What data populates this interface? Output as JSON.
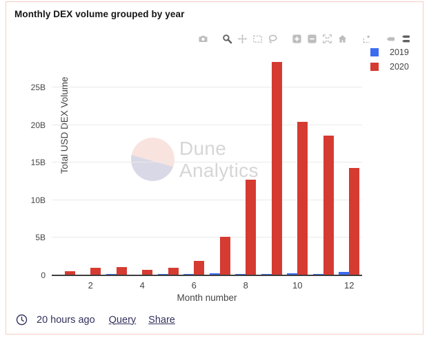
{
  "card": {
    "title": "Monthly DEX volume grouped by year"
  },
  "toolbar": {
    "icons": [
      {
        "name": "camera-download",
        "active": false
      },
      {
        "name": "zoom",
        "active": true
      },
      {
        "name": "pan",
        "active": false
      },
      {
        "name": "box-select",
        "active": false
      },
      {
        "name": "lasso-select",
        "active": false
      },
      {
        "name": "zoom-in",
        "active": false
      },
      {
        "name": "zoom-out",
        "active": false
      },
      {
        "name": "autoscale",
        "active": false
      },
      {
        "name": "reset-axes-home",
        "active": false
      },
      {
        "name": "toggle-spike-lines",
        "active": false
      },
      {
        "name": "hover-closest",
        "active": false
      },
      {
        "name": "hover-compare",
        "active": true
      }
    ]
  },
  "chart_data": {
    "type": "bar",
    "title": "Monthly DEX volume grouped by year",
    "xlabel": "Month number",
    "ylabel": "Total USD DEX Volume",
    "unit": "billions USD",
    "categories": [
      1,
      2,
      3,
      4,
      5,
      6,
      7,
      8,
      9,
      10,
      11,
      12
    ],
    "x_ticks": [
      2,
      4,
      6,
      8,
      10,
      12
    ],
    "y_ticks": [
      {
        "v": 0,
        "label": "0"
      },
      {
        "v": 5,
        "label": "5B"
      },
      {
        "v": 10,
        "label": "10B"
      },
      {
        "v": 15,
        "label": "15B"
      },
      {
        "v": 20,
        "label": "20B"
      },
      {
        "v": 25,
        "label": "25B"
      }
    ],
    "ylim": [
      0,
      28.4
    ],
    "grid": "horizontal",
    "legend_position": "top-right",
    "series": [
      {
        "name": "2019",
        "color": "#3a6cf0",
        "values": [
          0.06,
          0.1,
          0.14,
          0.1,
          0.18,
          0.22,
          0.28,
          0.16,
          0.2,
          0.26,
          0.22,
          0.42
        ]
      },
      {
        "name": "2020",
        "color": "#d53b31",
        "values": [
          0.55,
          1.0,
          1.1,
          0.75,
          1.0,
          1.9,
          5.1,
          12.7,
          28.4,
          20.4,
          18.6,
          14.3
        ]
      }
    ]
  },
  "watermark": {
    "line1": "Dune",
    "line2": "Analytics"
  },
  "footer": {
    "timestamp": "20 hours ago",
    "links": [
      {
        "label": "Query"
      },
      {
        "label": "Share"
      }
    ]
  },
  "colors": {
    "series_2019": "#3a6cf0",
    "series_2020": "#d53b31",
    "card_border": "#f6cdc2",
    "footer_text": "#31315e",
    "axis_text": "#444444",
    "gridline": "#e9e9e9",
    "watermark_pink": "#f9e3df",
    "watermark_lavender": "#d9d8e6",
    "modebar_inactive": "#bdbdbd",
    "modebar_active": "#5f5f5f"
  }
}
